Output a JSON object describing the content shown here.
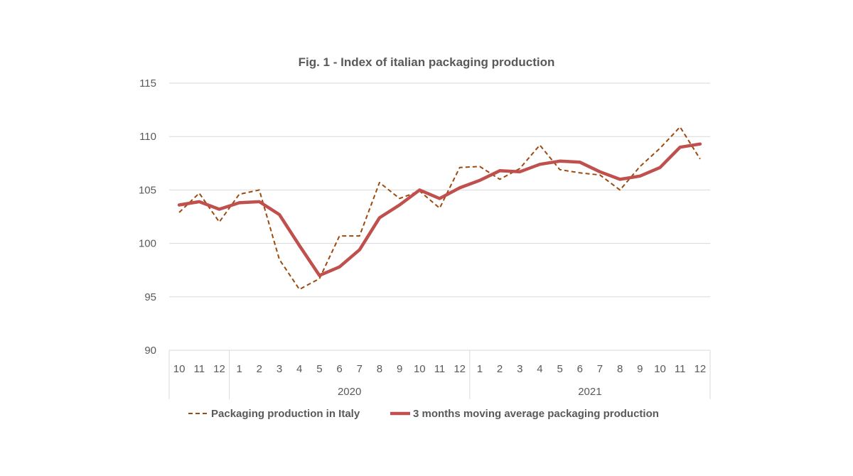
{
  "chart_data": {
    "type": "line",
    "title": "Fig. 1 - Index of italian packaging production",
    "xlabel": "",
    "ylabel": "",
    "ylim": [
      90,
      115
    ],
    "yticks": [
      90,
      95,
      100,
      105,
      110,
      115
    ],
    "grid": true,
    "legend_position": "bottom",
    "x": [
      "10",
      "11",
      "12",
      "1",
      "2",
      "3",
      "4",
      "5",
      "6",
      "7",
      "8",
      "9",
      "10",
      "11",
      "12",
      "1",
      "2",
      "3",
      "4",
      "5",
      "6",
      "7",
      "8",
      "9",
      "10",
      "11",
      "12"
    ],
    "year_groups": [
      {
        "label": "",
        "count": 3
      },
      {
        "label": "2020",
        "count": 12
      },
      {
        "label": "2021",
        "count": 12
      }
    ],
    "series": [
      {
        "name": "Packaging production in Italy",
        "style": "dashed",
        "color": "#9C4A0E",
        "values": [
          102.9,
          104.7,
          102.0,
          104.6,
          105.0,
          98.5,
          95.7,
          96.7,
          100.7,
          100.7,
          105.7,
          104.2,
          104.9,
          103.3,
          107.1,
          107.2,
          106.0,
          107.0,
          109.2,
          106.9,
          106.6,
          106.4,
          105.0,
          107.2,
          108.9,
          110.9,
          107.9
        ]
      },
      {
        "name": "3 months moving average packaging production",
        "style": "solid",
        "color": "#C0504D",
        "values": [
          103.6,
          103.9,
          103.2,
          103.8,
          103.9,
          102.7,
          99.8,
          97.0,
          97.8,
          99.4,
          102.4,
          103.6,
          105.0,
          104.2,
          105.2,
          105.9,
          106.8,
          106.7,
          107.4,
          107.7,
          107.6,
          106.7,
          106.0,
          106.3,
          107.1,
          109.0,
          109.3
        ]
      }
    ]
  }
}
